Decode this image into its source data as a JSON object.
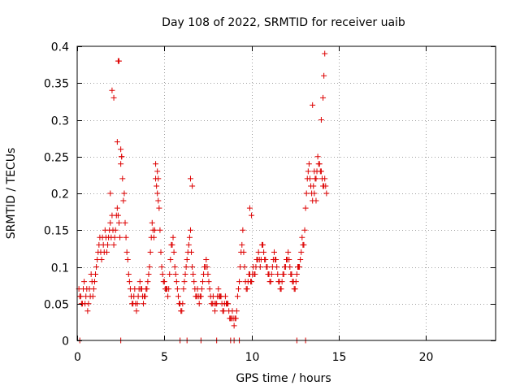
{
  "chart_data": {
    "type": "scatter",
    "title": "Day 108 of 2022, SRMTID for receiver uaib",
    "xlabel": "GPS time / hours",
    "ylabel": "SRMTID / TECUs",
    "xlim": [
      0,
      24
    ],
    "ylim": [
      0,
      0.4
    ],
    "xticks": [
      0,
      5,
      10,
      15,
      20
    ],
    "xtick_labels": [
      "0",
      "5",
      "10",
      "15",
      "20"
    ],
    "yticks": [
      0,
      0.05,
      0.1,
      0.15,
      0.2,
      0.25,
      0.3,
      0.35,
      0.4
    ],
    "ytick_labels": [
      "0",
      "0.05",
      "0.1",
      "0.15",
      "0.2",
      "0.25",
      "0.3",
      "0.35",
      "0.4"
    ],
    "grid": true,
    "marker": "+",
    "color": "#dd0000",
    "series": [
      {
        "name": "SRMTID",
        "x": [
          0.1,
          0.2,
          0.3,
          0.4,
          0.5,
          0.6,
          0.7,
          0.8,
          0.9,
          1.0,
          1.1,
          1.2,
          1.3,
          1.4,
          1.5,
          1.6,
          1.7,
          1.8,
          1.9,
          2.0,
          2.1,
          2.2,
          2.3,
          2.4,
          2.5,
          2.6,
          2.7,
          2.8,
          2.9,
          3.0,
          3.1,
          3.2,
          3.3,
          3.4,
          3.5,
          3.6,
          3.7,
          3.8,
          3.9,
          4.0,
          4.1,
          4.2,
          4.3,
          4.4,
          4.5,
          4.6,
          4.7,
          4.8,
          4.9,
          5.0,
          5.1,
          5.2,
          5.3,
          5.4,
          5.5,
          5.6,
          5.7,
          5.8,
          5.9,
          6.0,
          6.1,
          6.2,
          6.3,
          6.4,
          6.5,
          6.6,
          6.7,
          6.8,
          6.9,
          7.0,
          7.1,
          7.2,
          7.3,
          7.4,
          7.5,
          7.6,
          7.7,
          7.8,
          7.9,
          8.0,
          8.1,
          8.2,
          8.3,
          8.4,
          8.5,
          8.6,
          8.7,
          8.8,
          8.9,
          9.0,
          9.1,
          9.2,
          9.3,
          9.4,
          9.5,
          9.6,
          9.7,
          9.8,
          9.9,
          10.0,
          10.1,
          10.2,
          10.3,
          10.4,
          10.5,
          10.6,
          10.7,
          10.8,
          10.9,
          11.0,
          11.1,
          11.2,
          11.3,
          11.4,
          11.5,
          11.6,
          11.7,
          11.8,
          11.9,
          12.0,
          12.1,
          12.2,
          12.3,
          12.4,
          12.5,
          12.6,
          12.7,
          12.8,
          12.9,
          13.0,
          13.1,
          13.2,
          13.3,
          13.4,
          13.5,
          13.6,
          13.7,
          13.8,
          13.9,
          14.0,
          14.1,
          14.2,
          14.3,
          0.15,
          0.25,
          0.35,
          0.45,
          0.55,
          0.65,
          0.75,
          0.85,
          0.95,
          1.05,
          1.15,
          1.25,
          1.35,
          1.45,
          1.55,
          1.65,
          1.75,
          1.85,
          1.95,
          2.05,
          2.15,
          2.25,
          2.35,
          2.45,
          2.55,
          2.65,
          2.75,
          2.85,
          2.95,
          3.05,
          3.15,
          3.25,
          3.35,
          3.45,
          3.55,
          3.65,
          3.75,
          3.85,
          3.95,
          4.05,
          4.15,
          4.25,
          4.35,
          4.45,
          4.55,
          4.65,
          4.75,
          4.85,
          4.95,
          5.05,
          5.15,
          5.25,
          5.35,
          5.45,
          5.55,
          5.65,
          5.75,
          5.85,
          5.95,
          6.05,
          6.15,
          6.25,
          6.35,
          6.45,
          6.55,
          6.65,
          6.75,
          6.85,
          6.95,
          7.05,
          7.15,
          7.25,
          7.35,
          7.45,
          7.55,
          7.65,
          7.75,
          7.85,
          7.95,
          8.05,
          8.15,
          8.25,
          8.35,
          8.45,
          8.55,
          8.65,
          8.75,
          8.85,
          8.95,
          9.05,
          9.15,
          9.25,
          9.35,
          9.45,
          9.55,
          9.65,
          9.75,
          9.85,
          9.95,
          10.05,
          10.15,
          10.25,
          10.35,
          10.45,
          10.55,
          10.65,
          10.75,
          10.85,
          10.95,
          11.05,
          11.15,
          11.25,
          11.35,
          11.45,
          11.55,
          11.65,
          11.75,
          11.85,
          11.95,
          12.05,
          12.15,
          12.25,
          12.35,
          12.45,
          12.55,
          12.65,
          12.75,
          12.85,
          12.95,
          13.05,
          13.15,
          13.25,
          13.35,
          13.45,
          13.55,
          13.65,
          13.75,
          13.85,
          13.95,
          14.05,
          14.15,
          14.25,
          1.9,
          2.0,
          2.1,
          2.3,
          2.35,
          2.4,
          2.5,
          2.55,
          4.5,
          4.6,
          4.65,
          6.5,
          6.6,
          9.9,
          10.0,
          13.5,
          13.6,
          13.7,
          14.0,
          14.1,
          14.15,
          14.2,
          0.15,
          2.5,
          5.9,
          6.3,
          7.1,
          8.0,
          8.8,
          9.0,
          9.3,
          12.6,
          13.1
        ],
        "y": [
          0.07,
          0.06,
          0.05,
          0.08,
          0.06,
          0.04,
          0.07,
          0.09,
          0.06,
          0.08,
          0.1,
          0.12,
          0.14,
          0.11,
          0.13,
          0.15,
          0.12,
          0.14,
          0.16,
          0.17,
          0.13,
          0.15,
          0.18,
          0.16,
          0.24,
          0.22,
          0.2,
          0.14,
          0.11,
          0.08,
          0.06,
          0.05,
          0.07,
          0.04,
          0.06,
          0.08,
          0.07,
          0.05,
          0.06,
          0.07,
          0.09,
          0.12,
          0.16,
          0.14,
          0.22,
          0.2,
          0.18,
          0.12,
          0.09,
          0.08,
          0.07,
          0.06,
          0.09,
          0.13,
          0.14,
          0.1,
          0.08,
          0.06,
          0.05,
          0.04,
          0.07,
          0.09,
          0.11,
          0.13,
          0.15,
          0.1,
          0.08,
          0.06,
          0.07,
          0.05,
          0.06,
          0.08,
          0.1,
          0.11,
          0.09,
          0.07,
          0.05,
          0.06,
          0.04,
          0.05,
          0.07,
          0.06,
          0.05,
          0.04,
          0.06,
          0.05,
          0.04,
          0.03,
          0.04,
          0.02,
          0.03,
          0.06,
          0.08,
          0.12,
          0.15,
          0.1,
          0.07,
          0.08,
          0.09,
          0.08,
          0.1,
          0.09,
          0.11,
          0.12,
          0.1,
          0.13,
          0.12,
          0.11,
          0.1,
          0.09,
          0.08,
          0.1,
          0.12,
          0.11,
          0.09,
          0.08,
          0.07,
          0.09,
          0.1,
          0.11,
          0.12,
          0.1,
          0.09,
          0.08,
          0.07,
          0.09,
          0.1,
          0.11,
          0.14,
          0.13,
          0.18,
          0.22,
          0.24,
          0.21,
          0.19,
          0.23,
          0.22,
          0.25,
          0.24,
          0.23,
          0.21,
          0.22,
          0.2,
          0.06,
          0.05,
          0.07,
          0.05,
          0.07,
          0.05,
          0.06,
          0.08,
          0.07,
          0.09,
          0.11,
          0.13,
          0.12,
          0.14,
          0.12,
          0.14,
          0.13,
          0.15,
          0.14,
          0.15,
          0.14,
          0.17,
          0.17,
          0.14,
          0.25,
          0.19,
          0.16,
          0.12,
          0.09,
          0.07,
          0.05,
          0.06,
          0.05,
          0.05,
          0.07,
          0.07,
          0.06,
          0.06,
          0.07,
          0.08,
          0.1,
          0.14,
          0.15,
          0.15,
          0.21,
          0.19,
          0.15,
          0.1,
          0.08,
          0.07,
          0.07,
          0.07,
          0.11,
          0.13,
          0.12,
          0.09,
          0.07,
          0.05,
          0.04,
          0.05,
          0.08,
          0.1,
          0.12,
          0.14,
          0.12,
          0.09,
          0.07,
          0.06,
          0.06,
          0.06,
          0.07,
          0.09,
          0.1,
          0.1,
          0.08,
          0.06,
          0.05,
          0.05,
          0.05,
          0.06,
          0.06,
          0.06,
          0.04,
          0.05,
          0.05,
          0.05,
          0.03,
          0.03,
          0.03,
          0.03,
          0.04,
          0.07,
          0.1,
          0.13,
          0.12,
          0.08,
          0.07,
          0.09,
          0.08,
          0.09,
          0.09,
          0.1,
          0.11,
          0.11,
          0.11,
          0.13,
          0.11,
          0.1,
          0.09,
          0.08,
          0.09,
          0.11,
          0.11,
          0.1,
          0.08,
          0.07,
          0.08,
          0.09,
          0.1,
          0.11,
          0.11,
          0.09,
          0.08,
          0.07,
          0.08,
          0.1,
          0.1,
          0.12,
          0.13,
          0.15,
          0.2,
          0.23,
          0.22,
          0.2,
          0.21,
          0.22,
          0.23,
          0.24,
          0.23,
          0.22,
          0.21,
          0.21,
          0.2,
          0.34,
          0.33,
          0.27,
          0.38,
          0.38,
          0.26,
          0.25,
          0.24,
          0.23,
          0.22,
          0.22,
          0.21,
          0.18,
          0.17,
          0.32,
          0.2,
          0.19,
          0.3,
          0.33,
          0.36,
          0.39,
          0,
          0,
          0,
          0,
          0,
          0,
          0,
          0,
          0,
          0,
          0
        ]
      }
    ]
  }
}
